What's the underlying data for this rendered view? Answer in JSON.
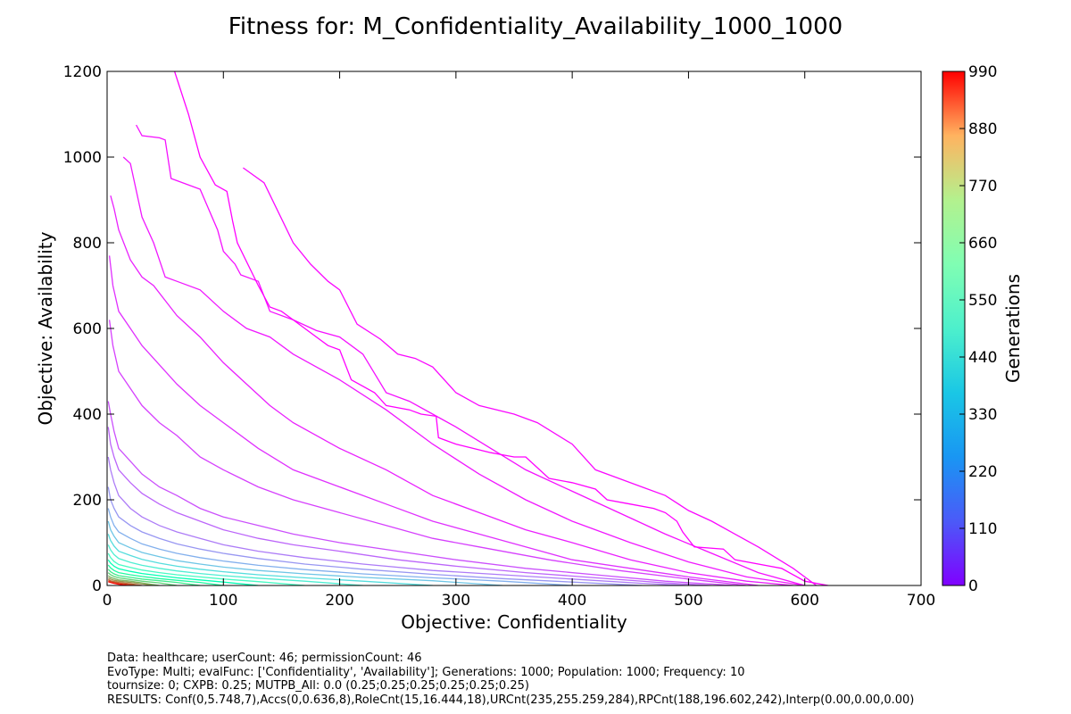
{
  "chart_data": {
    "type": "line",
    "title": "Fitness for: M_Confidentiality_Availability_1000_1000",
    "xlabel": "Objective: Confidentiality",
    "ylabel": "Objective: Availability",
    "xlim": [
      0,
      700
    ],
    "ylim": [
      0,
      1200
    ],
    "x_ticks": [
      "0",
      "100",
      "200",
      "300",
      "400",
      "500",
      "600",
      "700"
    ],
    "y_ticks": [
      "0",
      "200",
      "400",
      "600",
      "800",
      "1000",
      "1200"
    ],
    "grid": false,
    "colorbar": {
      "label": "Generations",
      "range": [
        0,
        990
      ],
      "ticks": [
        "0",
        "110",
        "220",
        "330",
        "440",
        "550",
        "660",
        "770",
        "880",
        "990"
      ],
      "colormap": "rainbow"
    },
    "series": [
      {
        "generation": 0,
        "x": [
          58,
          70,
          80,
          93,
          103,
          108,
          112,
          130,
          140,
          150,
          160,
          170,
          190,
          200,
          210,
          230,
          240,
          260,
          270,
          283,
          285,
          300,
          330,
          350,
          360,
          380,
          400,
          420,
          430,
          450,
          470,
          480,
          490,
          495,
          505,
          530,
          540,
          580,
          600,
          620
        ],
        "y": [
          1200,
          1100,
          1000,
          935,
          920,
          850,
          800,
          700,
          650,
          640,
          620,
          600,
          560,
          550,
          480,
          450,
          420,
          410,
          400,
          395,
          345,
          330,
          310,
          300,
          300,
          250,
          240,
          225,
          200,
          190,
          180,
          170,
          150,
          125,
          90,
          85,
          60,
          40,
          10,
          0
        ]
      },
      {
        "generation": 10,
        "x": [
          117,
          135,
          160,
          175,
          190,
          200,
          215,
          235,
          250,
          265,
          280,
          300,
          320,
          350,
          370,
          400,
          420,
          440,
          460,
          480,
          500,
          520,
          540,
          560,
          590,
          610
        ],
        "y": [
          975,
          940,
          800,
          750,
          710,
          690,
          610,
          575,
          540,
          530,
          510,
          450,
          420,
          400,
          380,
          330,
          270,
          250,
          230,
          210,
          175,
          150,
          120,
          90,
          40,
          0
        ]
      },
      {
        "generation": 20,
        "x": [
          25,
          30,
          45,
          50,
          55,
          80,
          95,
          100,
          110,
          115,
          130,
          140,
          160,
          180,
          200,
          220,
          240,
          260,
          280,
          300,
          330,
          360,
          400,
          440,
          480,
          520,
          560,
          600
        ],
        "y": [
          1075,
          1050,
          1045,
          1040,
          950,
          925,
          830,
          780,
          750,
          725,
          710,
          640,
          620,
          595,
          580,
          540,
          450,
          430,
          400,
          370,
          320,
          270,
          220,
          170,
          120,
          75,
          30,
          0
        ]
      },
      {
        "generation": 30,
        "x": [
          14,
          20,
          30,
          40,
          50,
          60,
          80,
          100,
          120,
          140,
          160,
          200,
          240,
          280,
          320,
          360,
          400,
          450,
          500,
          550,
          600
        ],
        "y": [
          1000,
          985,
          860,
          800,
          720,
          710,
          690,
          640,
          600,
          580,
          540,
          480,
          410,
          330,
          260,
          200,
          150,
          100,
          55,
          20,
          0
        ]
      },
      {
        "generation": 40,
        "x": [
          3,
          6,
          10,
          20,
          30,
          40,
          60,
          80,
          100,
          120,
          140,
          160,
          200,
          240,
          280,
          320,
          360,
          400,
          450,
          500,
          550,
          590
        ],
        "y": [
          910,
          880,
          830,
          760,
          720,
          700,
          630,
          580,
          520,
          470,
          420,
          380,
          320,
          270,
          210,
          170,
          130,
          100,
          60,
          30,
          10,
          0
        ]
      },
      {
        "generation": 60,
        "x": [
          2,
          5,
          10,
          20,
          30,
          40,
          60,
          80,
          100,
          130,
          160,
          200,
          240,
          280,
          320,
          360,
          400,
          450,
          500,
          560
        ],
        "y": [
          770,
          700,
          640,
          600,
          560,
          530,
          470,
          420,
          380,
          320,
          270,
          230,
          190,
          150,
          120,
          90,
          60,
          40,
          20,
          0
        ]
      },
      {
        "generation": 80,
        "x": [
          2,
          5,
          10,
          20,
          30,
          45,
          60,
          80,
          100,
          130,
          160,
          200,
          240,
          280,
          320,
          380,
          440,
          500,
          550
        ],
        "y": [
          620,
          560,
          500,
          460,
          420,
          380,
          350,
          300,
          270,
          230,
          200,
          170,
          140,
          110,
          90,
          60,
          35,
          15,
          0
        ]
      },
      {
        "generation": 100,
        "x": [
          1,
          3,
          6,
          10,
          20,
          30,
          45,
          60,
          80,
          100,
          130,
          160,
          200,
          250,
          300,
          360,
          420,
          480,
          540
        ],
        "y": [
          430,
          400,
          360,
          320,
          290,
          260,
          230,
          210,
          180,
          160,
          140,
          120,
          100,
          80,
          60,
          40,
          25,
          10,
          0
        ]
      },
      {
        "generation": 130,
        "x": [
          1,
          3,
          6,
          10,
          20,
          30,
          45,
          60,
          80,
          100,
          130,
          160,
          200,
          250,
          300,
          360,
          420,
          480,
          520
        ],
        "y": [
          370,
          330,
          300,
          270,
          240,
          215,
          190,
          170,
          150,
          130,
          110,
          95,
          80,
          60,
          45,
          30,
          18,
          6,
          0
        ]
      },
      {
        "generation": 160,
        "x": [
          1,
          3,
          6,
          10,
          20,
          30,
          45,
          60,
          80,
          100,
          130,
          170,
          220,
          280,
          340,
          400,
          460,
          500
        ],
        "y": [
          300,
          270,
          240,
          210,
          180,
          160,
          140,
          125,
          110,
          95,
          80,
          65,
          50,
          35,
          25,
          15,
          5,
          0
        ]
      },
      {
        "generation": 200,
        "x": [
          1,
          3,
          6,
          10,
          20,
          30,
          45,
          60,
          80,
          100,
          130,
          170,
          220,
          280,
          340,
          400,
          460
        ],
        "y": [
          230,
          200,
          180,
          160,
          140,
          125,
          110,
          97,
          85,
          75,
          63,
          50,
          38,
          26,
          16,
          8,
          0
        ]
      },
      {
        "generation": 240,
        "x": [
          1,
          3,
          6,
          10,
          20,
          30,
          45,
          60,
          80,
          100,
          130,
          170,
          220,
          280,
          340,
          400
        ],
        "y": [
          180,
          160,
          140,
          125,
          110,
          97,
          85,
          75,
          65,
          57,
          47,
          37,
          27,
          18,
          10,
          0
        ]
      },
      {
        "generation": 280,
        "x": [
          1,
          3,
          6,
          10,
          20,
          30,
          45,
          60,
          80,
          100,
          130,
          170,
          220,
          280,
          340
        ],
        "y": [
          150,
          130,
          115,
          100,
          88,
          77,
          67,
          58,
          50,
          43,
          35,
          27,
          19,
          11,
          0
        ]
      },
      {
        "generation": 330,
        "x": [
          1,
          3,
          6,
          10,
          20,
          30,
          45,
          60,
          80,
          100,
          130,
          170,
          220,
          280
        ],
        "y": [
          120,
          105,
          92,
          80,
          70,
          61,
          52,
          45,
          38,
          32,
          25,
          18,
          10,
          0
        ]
      },
      {
        "generation": 380,
        "x": [
          1,
          3,
          6,
          10,
          20,
          30,
          45,
          60,
          80,
          100,
          130,
          170,
          220
        ],
        "y": [
          95,
          83,
          72,
          63,
          54,
          47,
          40,
          34,
          28,
          23,
          17,
          10,
          0
        ]
      },
      {
        "generation": 440,
        "x": [
          1,
          3,
          6,
          10,
          20,
          30,
          45,
          60,
          80,
          100,
          130,
          170
        ],
        "y": [
          75,
          65,
          56,
          49,
          42,
          36,
          30,
          25,
          20,
          15,
          9,
          0
        ]
      },
      {
        "generation": 500,
        "x": [
          1,
          3,
          6,
          10,
          20,
          30,
          45,
          60,
          80,
          100,
          130
        ],
        "y": [
          60,
          52,
          45,
          39,
          33,
          28,
          23,
          18,
          13,
          8,
          0
        ]
      },
      {
        "generation": 560,
        "x": [
          1,
          3,
          6,
          10,
          20,
          30,
          45,
          60,
          80,
          100
        ],
        "y": [
          48,
          41,
          35,
          30,
          25,
          21,
          16,
          12,
          7,
          0
        ]
      },
      {
        "generation": 620,
        "x": [
          1,
          3,
          6,
          10,
          20,
          30,
          45,
          60,
          80
        ],
        "y": [
          38,
          32,
          27,
          23,
          19,
          15,
          11,
          7,
          0
        ]
      },
      {
        "generation": 680,
        "x": [
          1,
          3,
          6,
          10,
          20,
          30,
          45,
          60
        ],
        "y": [
          30,
          25,
          21,
          18,
          14,
          10,
          6,
          0
        ]
      },
      {
        "generation": 740,
        "x": [
          1,
          3,
          6,
          10,
          20,
          30,
          45
        ],
        "y": [
          23,
          19,
          16,
          13,
          10,
          6,
          0
        ]
      },
      {
        "generation": 800,
        "x": [
          1,
          3,
          6,
          10,
          20,
          30,
          40
        ],
        "y": [
          18,
          15,
          12,
          10,
          7,
          4,
          0
        ]
      },
      {
        "generation": 860,
        "x": [
          1,
          3,
          6,
          10,
          20,
          30
        ],
        "y": [
          14,
          11,
          9,
          7,
          4,
          0
        ]
      },
      {
        "generation": 920,
        "x": [
          1,
          3,
          6,
          10,
          20,
          25
        ],
        "y": [
          11,
          9,
          7,
          5,
          2,
          0
        ]
      },
      {
        "generation": 990,
        "x": [
          1,
          3,
          6,
          10,
          15,
          20
        ],
        "y": [
          9,
          7,
          5,
          3,
          1,
          0
        ]
      }
    ]
  },
  "footer": {
    "line1": "Data: healthcare; userCount: 46; permissionCount: 46",
    "line2": "EvoType: Multi; evalFunc: ['Confidentiality', 'Availability']; Generations: 1000; Population: 1000; Frequency: 10",
    "line3": "tournsize: 0; CXPB: 0.25; MUTPB_All: 0.0 (0.25;0.25;0.25;0.25;0.25;0.25)",
    "line4": "RESULTS: Conf(0,5.748,7),Accs(0,0.636,8),RoleCnt(15,16.444,18),URCnt(235,255.259,284),RPCnt(188,196.602,242),Interp(0.00,0.00,0.00)"
  }
}
